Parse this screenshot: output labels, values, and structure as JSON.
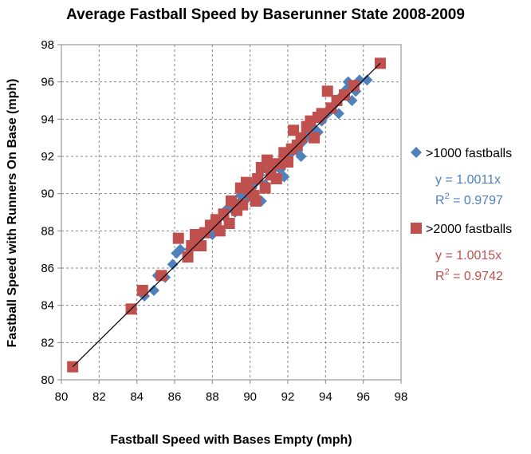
{
  "chart_data": {
    "type": "scatter",
    "title": "Average Fastball Speed by Baserunner State 2008-2009",
    "xlabel": "Fastball Speed with Bases Empty (mph)",
    "ylabel": "Fastball Speed with Runners On Base (mph)",
    "xlim": [
      80,
      98
    ],
    "ylim": [
      80,
      98
    ],
    "xticks": [
      "80",
      "82",
      "84",
      "86",
      "88",
      "90",
      "92",
      "94",
      "96",
      "98"
    ],
    "yticks": [
      "80",
      "82",
      "84",
      "86",
      "88",
      "90",
      "92",
      "94",
      "96",
      "98"
    ],
    "grid": true,
    "legend_position": "right",
    "trendline": {
      "from": [
        80.6,
        80.7
      ],
      "to": [
        96.9,
        97.0
      ]
    },
    "series": [
      {
        "name": ">1000 fastballs",
        "marker": "diamond",
        "color": "#4F81BD",
        "equation": "y = 1.0011x",
        "r2_label": "R",
        "r2_sup": "2",
        "r2_value": " = 0.9797",
        "points": [
          [
            84.4,
            84.5
          ],
          [
            84.9,
            84.8
          ],
          [
            85.1,
            85.6
          ],
          [
            85.5,
            85.5
          ],
          [
            85.9,
            86.2
          ],
          [
            86.1,
            86.8
          ],
          [
            86.3,
            87.0
          ],
          [
            86.8,
            87.0
          ],
          [
            87.2,
            87.5
          ],
          [
            87.5,
            87.8
          ],
          [
            87.8,
            88.0
          ],
          [
            88.0,
            87.8
          ],
          [
            88.3,
            88.2
          ],
          [
            88.6,
            88.8
          ],
          [
            88.8,
            89.2
          ],
          [
            89.0,
            89.3
          ],
          [
            89.2,
            89.0
          ],
          [
            89.4,
            89.5
          ],
          [
            89.5,
            89.9
          ],
          [
            89.7,
            90.2
          ],
          [
            89.9,
            89.8
          ],
          [
            90.1,
            90.3
          ],
          [
            90.3,
            90.6
          ],
          [
            90.5,
            91.0
          ],
          [
            90.6,
            89.6
          ],
          [
            90.8,
            90.5
          ],
          [
            91.0,
            91.2
          ],
          [
            91.2,
            91.0
          ],
          [
            91.4,
            91.5
          ],
          [
            91.6,
            91.3
          ],
          [
            91.8,
            90.9
          ],
          [
            91.9,
            91.8
          ],
          [
            92.1,
            92.1
          ],
          [
            92.3,
            92.5
          ],
          [
            92.5,
            92.3
          ],
          [
            92.7,
            92.0
          ],
          [
            92.8,
            92.8
          ],
          [
            93.0,
            93.2
          ],
          [
            93.2,
            93.0
          ],
          [
            93.4,
            93.5
          ],
          [
            93.6,
            93.3
          ],
          [
            93.8,
            93.9
          ],
          [
            94.0,
            94.2
          ],
          [
            94.3,
            94.5
          ],
          [
            94.5,
            94.8
          ],
          [
            94.7,
            94.3
          ],
          [
            94.9,
            95.3
          ],
          [
            95.1,
            95.6
          ],
          [
            95.2,
            96.0
          ],
          [
            95.4,
            95.0
          ],
          [
            95.6,
            95.5
          ],
          [
            95.8,
            96.1
          ],
          [
            96.2,
            96.1
          ]
        ]
      },
      {
        "name": ">2000 fastballs",
        "marker": "square",
        "color": "#C0504D",
        "equation": "y = 1.0015x",
        "r2_label": "R",
        "r2_sup": "2",
        "r2_value": " = 0.9742",
        "points": [
          [
            80.6,
            80.7
          ],
          [
            83.7,
            83.8
          ],
          [
            84.3,
            84.8
          ],
          [
            85.3,
            85.6
          ],
          [
            86.2,
            87.6
          ],
          [
            86.7,
            86.6
          ],
          [
            86.9,
            87.2
          ],
          [
            87.1,
            87.8
          ],
          [
            87.4,
            87.2
          ],
          [
            87.6,
            87.9
          ],
          [
            87.9,
            88.3
          ],
          [
            88.2,
            88.6
          ],
          [
            88.4,
            88.0
          ],
          [
            88.6,
            88.9
          ],
          [
            88.9,
            88.4
          ],
          [
            89.0,
            89.6
          ],
          [
            89.3,
            89.1
          ],
          [
            89.5,
            90.3
          ],
          [
            89.6,
            89.4
          ],
          [
            89.8,
            90.6
          ],
          [
            90.0,
            90.1
          ],
          [
            90.2,
            89.9
          ],
          [
            90.3,
            89.6
          ],
          [
            90.4,
            90.8
          ],
          [
            90.6,
            91.4
          ],
          [
            90.8,
            90.3
          ],
          [
            90.9,
            91.8
          ],
          [
            91.1,
            91.0
          ],
          [
            91.2,
            91.6
          ],
          [
            91.4,
            90.8
          ],
          [
            91.6,
            91.6
          ],
          [
            91.8,
            92.2
          ],
          [
            92.0,
            91.7
          ],
          [
            92.2,
            92.4
          ],
          [
            92.3,
            93.4
          ],
          [
            92.5,
            92.6
          ],
          [
            92.7,
            93.0
          ],
          [
            93.0,
            93.6
          ],
          [
            93.2,
            93.9
          ],
          [
            93.4,
            93.0
          ],
          [
            93.6,
            94.1
          ],
          [
            93.8,
            94.3
          ],
          [
            94.1,
            95.5
          ],
          [
            94.3,
            94.6
          ],
          [
            94.6,
            95.0
          ],
          [
            95.0,
            95.3
          ],
          [
            95.5,
            95.8
          ],
          [
            96.9,
            97.0
          ]
        ]
      }
    ]
  }
}
